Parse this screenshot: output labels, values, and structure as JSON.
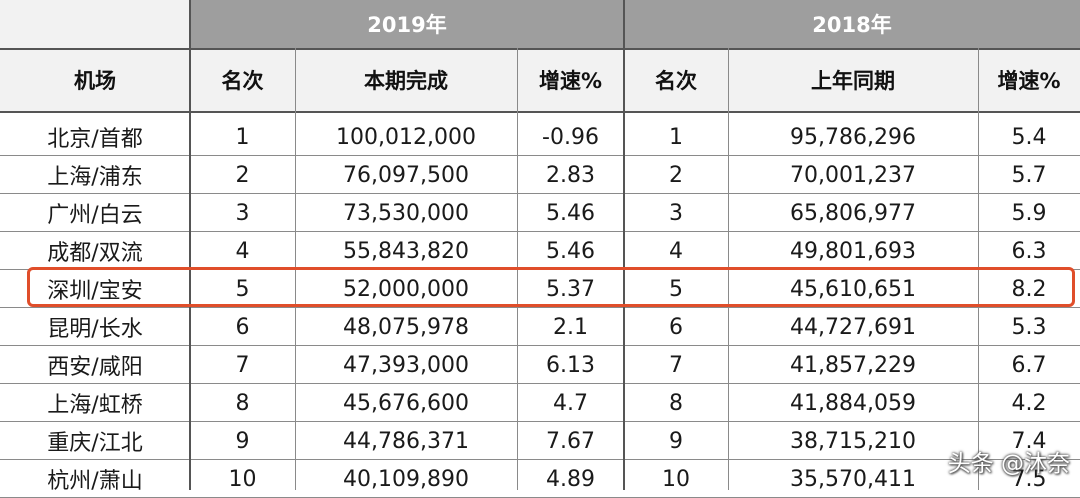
{
  "groups": {
    "y2019": "2019年",
    "y2018": "2018年"
  },
  "columns": {
    "airport": "机场",
    "rank2019": "名次",
    "current": "本期完成",
    "growth2019": "增速%",
    "rank2018": "名次",
    "lastyear": "上年同期",
    "growth2018": "增速%"
  },
  "rows": [
    {
      "airport": "北京/首都",
      "rank2019": "1",
      "current": "100,012,000",
      "growth2019": "-0.96",
      "rank2018": "1",
      "lastyear": "95,786,296",
      "growth2018": "5.4"
    },
    {
      "airport": "上海/浦东",
      "rank2019": "2",
      "current": "76,097,500",
      "growth2019": "2.83",
      "rank2018": "2",
      "lastyear": "70,001,237",
      "growth2018": "5.7"
    },
    {
      "airport": "广州/白云",
      "rank2019": "3",
      "current": "73,530,000",
      "growth2019": "5.46",
      "rank2018": "3",
      "lastyear": "65,806,977",
      "growth2018": "5.9"
    },
    {
      "airport": "成都/双流",
      "rank2019": "4",
      "current": "55,843,820",
      "growth2019": "5.46",
      "rank2018": "4",
      "lastyear": "49,801,693",
      "growth2018": "6.3"
    },
    {
      "airport": "深圳/宝安",
      "rank2019": "5",
      "current": "52,000,000",
      "growth2019": "5.37",
      "rank2018": "5",
      "lastyear": "45,610,651",
      "growth2018": "8.2"
    },
    {
      "airport": "昆明/长水",
      "rank2019": "6",
      "current": "48,075,978",
      "growth2019": "2.1",
      "rank2018": "6",
      "lastyear": "44,727,691",
      "growth2018": "5.3"
    },
    {
      "airport": "西安/咸阳",
      "rank2019": "7",
      "current": "47,393,000",
      "growth2019": "6.13",
      "rank2018": "7",
      "lastyear": "41,857,229",
      "growth2018": "6.7"
    },
    {
      "airport": "上海/虹桥",
      "rank2019": "8",
      "current": "45,676,600",
      "growth2019": "4.7",
      "rank2018": "8",
      "lastyear": "41,884,059",
      "growth2018": "4.2"
    },
    {
      "airport": "重庆/江北",
      "rank2019": "9",
      "current": "44,786,371",
      "growth2019": "7.67",
      "rank2018": "9",
      "lastyear": "38,715,210",
      "growth2018": "7.4"
    },
    {
      "airport": "杭州/萧山",
      "rank2019": "10",
      "current": "40,109,890",
      "growth2019": "4.89",
      "rank2018": "10",
      "lastyear": "35,570,411",
      "growth2018": "7.5"
    }
  ],
  "watermark": "头条 @沐奈",
  "colors": {
    "highlight": "#e04e2a",
    "group_bg": "#9e9e9e",
    "header_bg": "#f2f2f2"
  }
}
